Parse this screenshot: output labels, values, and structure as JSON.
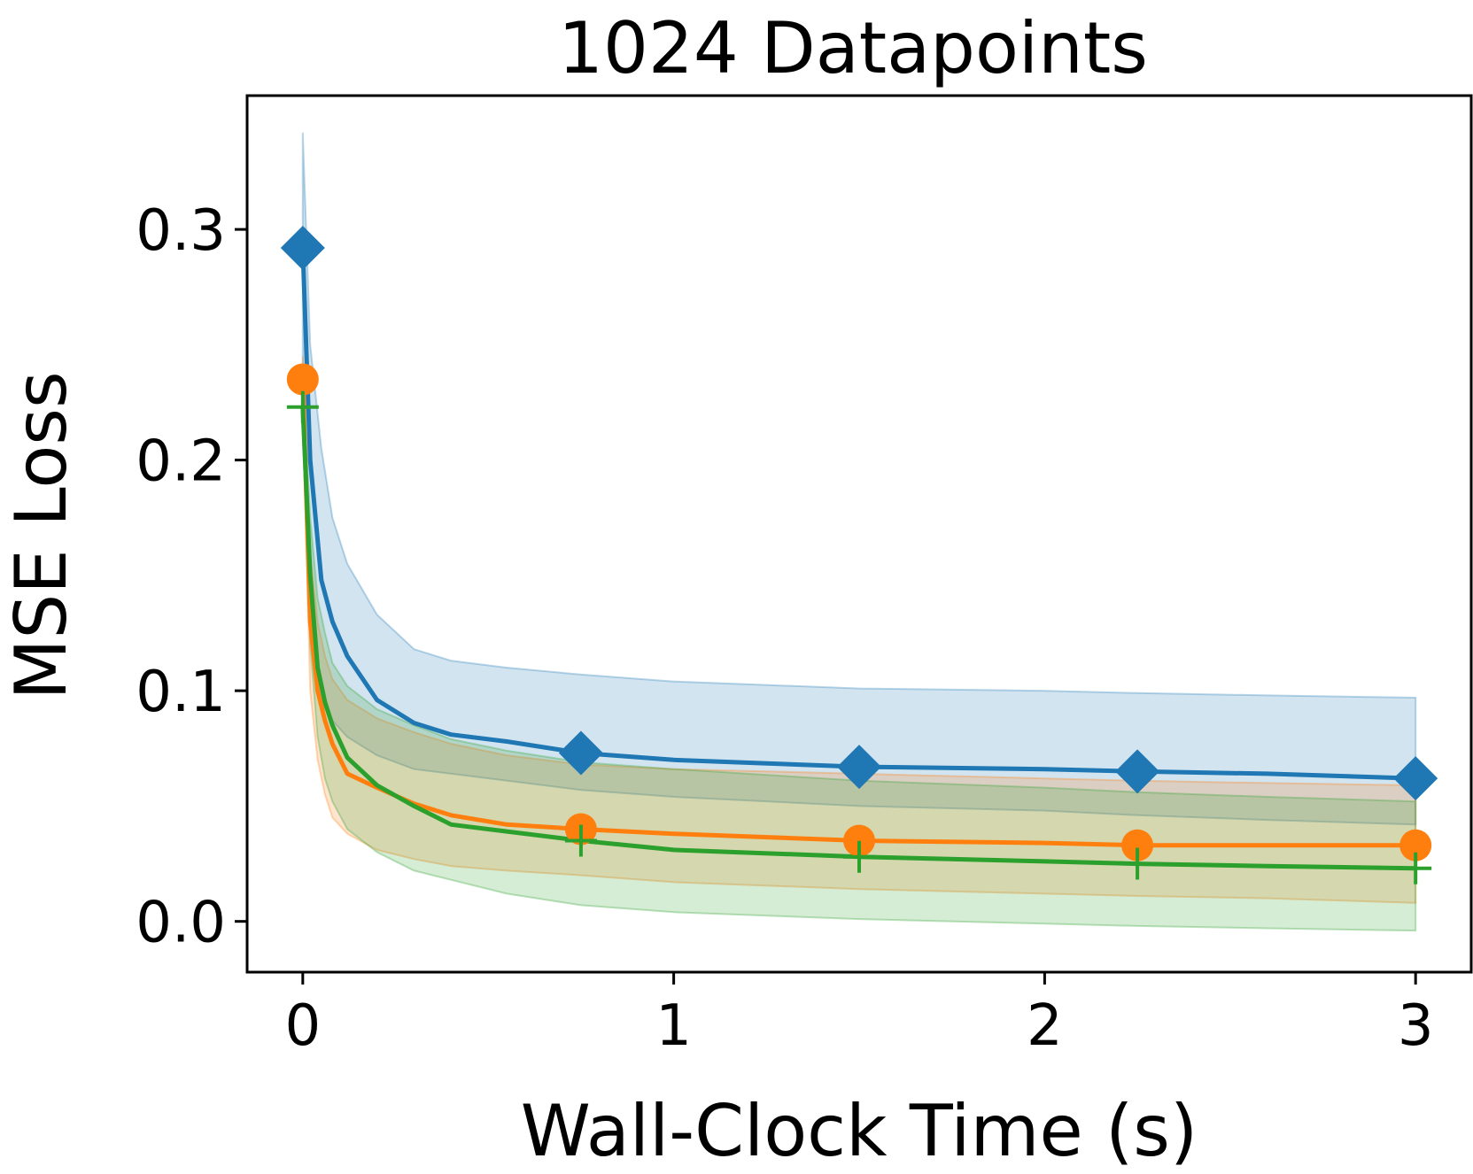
{
  "chart_data": {
    "type": "line",
    "title": "1024 Datapoints",
    "xlabel": "Wall-Clock Time (s)",
    "ylabel": "MSE Loss",
    "xlim": [
      -0.15,
      3.15
    ],
    "ylim": [
      -0.022,
      0.358
    ],
    "xticks": [
      0,
      1,
      2,
      3
    ],
    "xtick_labels": [
      "0",
      "1",
      "2",
      "3"
    ],
    "yticks": [
      0.0,
      0.1,
      0.2,
      0.3
    ],
    "ytick_labels": [
      "0.0",
      "0.1",
      "0.2",
      "0.3"
    ],
    "grid": false,
    "legend": "none",
    "series": [
      {
        "color": "#1f77b4",
        "marker": "diamond",
        "x": [
          0,
          0.02,
          0.05,
          0.08,
          0.12,
          0.2,
          0.3,
          0.4,
          0.55,
          0.75,
          1.0,
          1.5,
          2.0,
          2.25,
          2.6,
          3.0
        ],
        "y": [
          0.292,
          0.2,
          0.148,
          0.13,
          0.115,
          0.096,
          0.086,
          0.081,
          0.078,
          0.073,
          0.07,
          0.067,
          0.066,
          0.065,
          0.064,
          0.062
        ],
        "band_upper": [
          0.342,
          0.25,
          0.205,
          0.175,
          0.155,
          0.133,
          0.118,
          0.113,
          0.11,
          0.107,
          0.104,
          0.101,
          0.1,
          0.099,
          0.098,
          0.097
        ],
        "band_lower": [
          0.242,
          0.15,
          0.095,
          0.087,
          0.08,
          0.072,
          0.066,
          0.064,
          0.061,
          0.057,
          0.054,
          0.05,
          0.048,
          0.046,
          0.044,
          0.042
        ],
        "markers_x": [
          0,
          0.75,
          1.5,
          2.25,
          3.0
        ],
        "markers_y": [
          0.292,
          0.073,
          0.067,
          0.065,
          0.062
        ]
      },
      {
        "color": "#ff7f0e",
        "marker": "circle",
        "x": [
          0,
          0.02,
          0.04,
          0.06,
          0.08,
          0.12,
          0.2,
          0.3,
          0.4,
          0.55,
          0.75,
          1.0,
          1.5,
          2.0,
          2.25,
          2.6,
          3.0
        ],
        "y": [
          0.235,
          0.13,
          0.1,
          0.087,
          0.077,
          0.064,
          0.058,
          0.051,
          0.046,
          0.042,
          0.04,
          0.038,
          0.035,
          0.034,
          0.033,
          0.033,
          0.033
        ],
        "band_upper": [
          0.245,
          0.16,
          0.13,
          0.115,
          0.105,
          0.096,
          0.088,
          0.082,
          0.077,
          0.072,
          0.068,
          0.066,
          0.064,
          0.062,
          0.061,
          0.06,
          0.059
        ],
        "band_lower": [
          0.225,
          0.1,
          0.07,
          0.055,
          0.045,
          0.038,
          0.031,
          0.027,
          0.024,
          0.022,
          0.02,
          0.017,
          0.014,
          0.012,
          0.011,
          0.01,
          0.008
        ],
        "markers_x": [
          0,
          0.75,
          1.5,
          2.25,
          3.0
        ],
        "markers_y": [
          0.235,
          0.04,
          0.035,
          0.033,
          0.033
        ]
      },
      {
        "color": "#2ca02c",
        "marker": "plus",
        "x": [
          0,
          0.02,
          0.04,
          0.06,
          0.08,
          0.12,
          0.2,
          0.3,
          0.4,
          0.55,
          0.75,
          1.0,
          1.5,
          2.0,
          2.25,
          2.6,
          3.0
        ],
        "y": [
          0.223,
          0.15,
          0.11,
          0.095,
          0.085,
          0.071,
          0.059,
          0.05,
          0.042,
          0.039,
          0.035,
          0.031,
          0.028,
          0.026,
          0.025,
          0.024,
          0.023
        ],
        "band_upper": [
          0.233,
          0.175,
          0.14,
          0.125,
          0.112,
          0.102,
          0.092,
          0.085,
          0.079,
          0.074,
          0.069,
          0.066,
          0.061,
          0.058,
          0.056,
          0.054,
          0.052
        ],
        "band_lower": [
          0.213,
          0.12,
          0.08,
          0.062,
          0.052,
          0.04,
          0.03,
          0.022,
          0.018,
          0.012,
          0.007,
          0.004,
          0.001,
          -0.001,
          -0.002,
          -0.003,
          -0.004
        ],
        "markers_x": [
          0,
          0.75,
          1.5,
          2.25,
          3.0
        ],
        "markers_y": [
          0.223,
          0.035,
          0.028,
          0.025,
          0.023
        ]
      }
    ]
  }
}
